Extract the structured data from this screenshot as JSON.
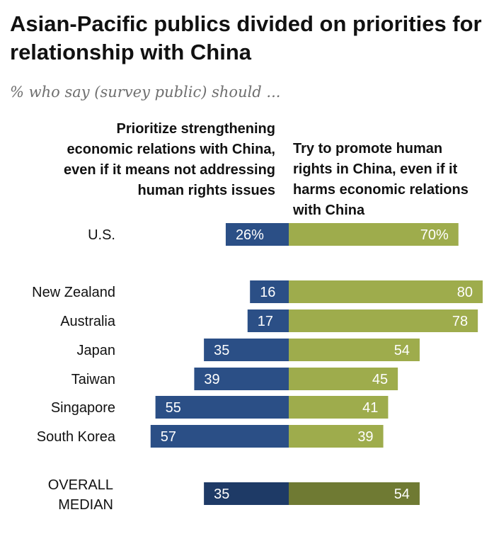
{
  "title": "Asian-Pacific publics divided on priorities for relationship with China",
  "subtitle": "% who say (survey public) should ...",
  "chart_data": {
    "type": "bar",
    "orientation": "horizontal-diverging",
    "series": [
      {
        "name": "Prioritize strengthening economic relations with China, even if it means not addressing human rights issues",
        "color": "#2b4f86",
        "median_color": "#1e3a66"
      },
      {
        "name": "Try to promote human rights in China, even if it harms economic relations with China",
        "color": "#9eac4c",
        "median_color": "#6f7a33"
      }
    ],
    "rows": [
      {
        "label": "U.S.",
        "left": 26,
        "right": 70,
        "left_label": "26%",
        "right_label": "70%",
        "group": "us"
      },
      {
        "label": "New Zealand",
        "left": 16,
        "right": 80,
        "left_label": "16",
        "right_label": "80",
        "group": "country"
      },
      {
        "label": "Australia",
        "left": 17,
        "right": 78,
        "left_label": "17",
        "right_label": "78",
        "group": "country"
      },
      {
        "label": "Japan",
        "left": 35,
        "right": 54,
        "left_label": "35",
        "right_label": "54",
        "group": "country"
      },
      {
        "label": "Taiwan",
        "left": 39,
        "right": 45,
        "left_label": "39",
        "right_label": "45",
        "group": "country"
      },
      {
        "label": "Singapore",
        "left": 55,
        "right": 41,
        "left_label": "55",
        "right_label": "41",
        "group": "country"
      },
      {
        "label": "South Korea",
        "left": 57,
        "right": 39,
        "left_label": "57",
        "right_label": "39",
        "group": "country"
      },
      {
        "label": "OVERALL MEDIAN",
        "left": 35,
        "right": 54,
        "left_label": "35",
        "right_label": "54",
        "group": "median"
      }
    ]
  }
}
